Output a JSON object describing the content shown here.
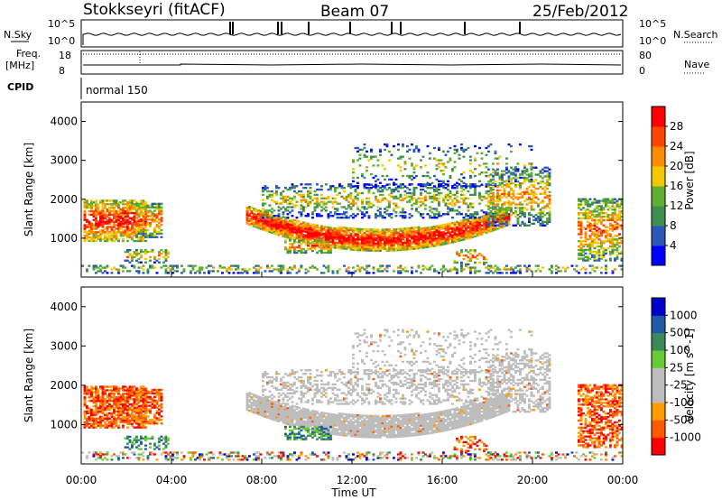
{
  "header": {
    "station": "Stokkseyri (fitACF)",
    "beam": "Beam 07",
    "date": "25/Feb/2012"
  },
  "strip_nsky": {
    "left_label": "N.Sky",
    "right_label": "N.Search",
    "left_ticks": [
      "10^5",
      "10^0"
    ],
    "right_ticks": [
      "10^5",
      "10^0"
    ]
  },
  "strip_freq": {
    "left_label_1": "Freq.",
    "left_label_2": "[MHz]",
    "right_label": "Nave",
    "left_ticks": [
      "18",
      "8"
    ],
    "right_ticks": [
      "80",
      "0"
    ]
  },
  "cpid": {
    "label": "CPID",
    "mode": "normal 150"
  },
  "colors": {
    "power_scale": [
      "#0000ff",
      "#2b57b8",
      "#3f8f4f",
      "#5fb030",
      "#f5c700",
      "#ff8c00",
      "#ff4500",
      "#ff0000"
    ],
    "velocity_scale": [
      "#ff0000",
      "#ff5a00",
      "#ff9a00",
      "#bdbdbd",
      "#bdbdbd",
      "#66cc33",
      "#3a8a5a",
      "#1f5aa8",
      "#0000cc"
    ],
    "ground_scatter": "#bdbdbd"
  },
  "chart_data": [
    {
      "type": "heatmap",
      "panel": "power",
      "ylabel": "Slant Range [km]",
      "y_ticks": [
        "1000",
        "2000",
        "3000",
        "4000"
      ],
      "ylim": [
        0,
        4500
      ],
      "xlim_hours": [
        0,
        24
      ],
      "colorbar": {
        "label": "Power [dB]",
        "ticks": [
          "4",
          "8",
          "12",
          "16",
          "20",
          "24",
          "28"
        ],
        "range": [
          0,
          32
        ]
      }
    },
    {
      "type": "heatmap",
      "panel": "velocity",
      "ylabel": "Slant Range [km]",
      "y_ticks": [
        "1000",
        "2000",
        "3000",
        "4000"
      ],
      "ylim": [
        0,
        4500
      ],
      "xlim_hours": [
        0,
        24
      ],
      "colorbar": {
        "label": "Velocity [m s^-1]",
        "ticks": [
          "1000",
          "500",
          "100",
          "25",
          "-25",
          "-100",
          "-500",
          "-1000"
        ]
      }
    }
  ],
  "x_axis": {
    "label": "Time UT",
    "ticks": [
      "00:00",
      "04:00",
      "08:00",
      "12:00",
      "16:00",
      "20:00",
      "00:00"
    ]
  }
}
